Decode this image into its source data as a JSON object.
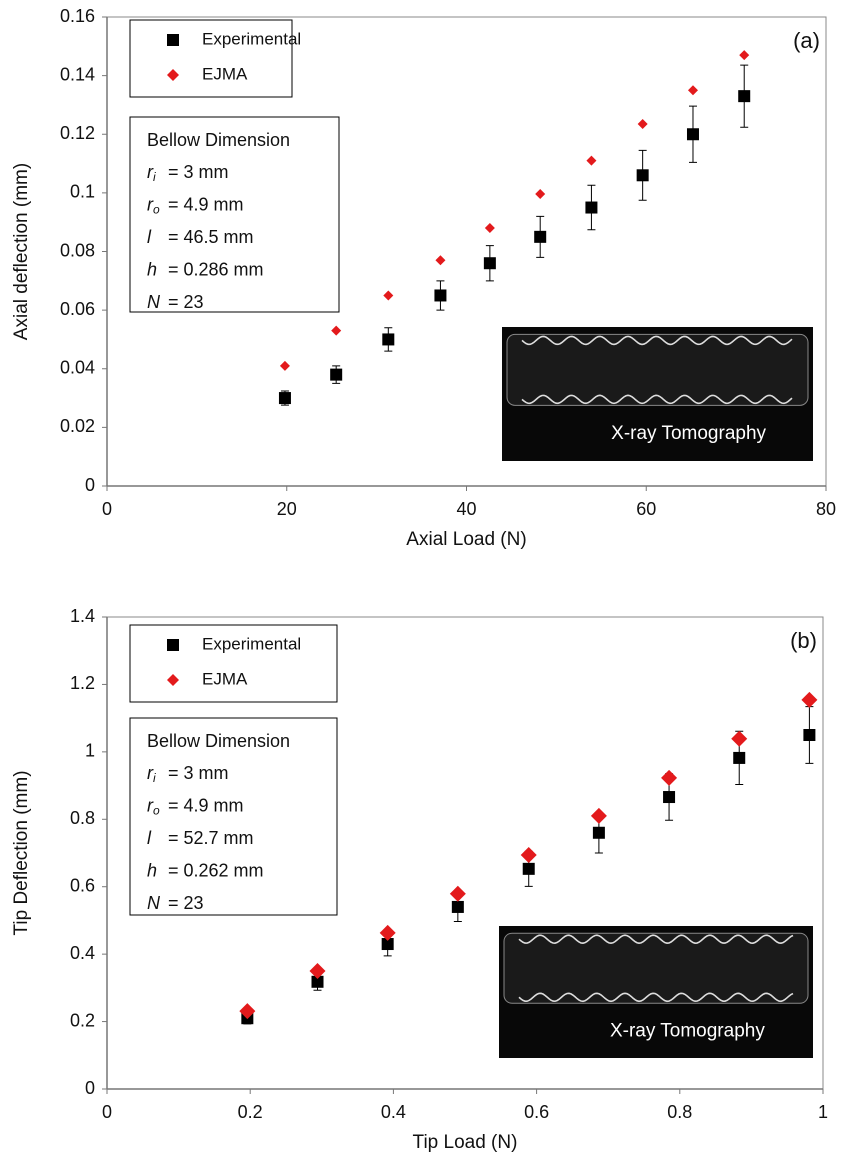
{
  "chart_data": [
    {
      "type": "scatter",
      "annotation": "(a)",
      "xlabel": "Axial Load (N)",
      "ylabel": "Axial deflection (mm)",
      "xlim": [
        0,
        80
      ],
      "ylim": [
        0,
        0.16
      ],
      "xticks": [
        0,
        20,
        40,
        60,
        80
      ],
      "yticks": [
        0,
        0.02,
        0.04,
        0.06,
        0.08,
        0.1,
        0.12,
        0.14,
        0.16
      ],
      "x": [
        19.8,
        25.5,
        31.3,
        37.1,
        42.6,
        48.2,
        53.9,
        59.6,
        65.2,
        70.9
      ],
      "series": [
        {
          "name": "Experimental",
          "color": "#000000",
          "marker": "square",
          "values": [
            0.03,
            0.038,
            0.05,
            0.065,
            0.076,
            0.085,
            0.095,
            0.106,
            0.12,
            0.133
          ],
          "errors": [
            0.0024,
            0.003,
            0.004,
            0.005,
            0.006,
            0.007,
            0.0076,
            0.0085,
            0.0096,
            0.0106
          ]
        },
        {
          "name": "EJMA",
          "color": "#e31a1c",
          "marker": "diamond",
          "values": [
            0.041,
            0.053,
            0.065,
            0.077,
            0.088,
            0.0996,
            0.111,
            0.1235,
            0.135,
            0.147
          ]
        }
      ],
      "legend": "upper left",
      "dimension_box": {
        "title": "Bellow Dimension",
        "rows": [
          {
            "symbol": "r",
            "subscript": "i",
            "text": "= 3 mm"
          },
          {
            "symbol": "r",
            "subscript": "o",
            "text": "= 4.9 mm"
          },
          {
            "symbol": "l",
            "text": "= 46.5 mm"
          },
          {
            "symbol": "h",
            "text": "= 0.286 mm"
          },
          {
            "symbol": "N",
            "text": "= 23"
          }
        ]
      },
      "image_caption": "X-ray Tomography"
    },
    {
      "type": "scatter",
      "annotation": "(b)",
      "xlabel": "Tip Load (N)",
      "ylabel": "Tip Deflection (mm)",
      "xlim": [
        0,
        1
      ],
      "ylim": [
        0,
        1.4
      ],
      "xticks": [
        0,
        0.2,
        0.4,
        0.6,
        0.8,
        1
      ],
      "yticks": [
        0,
        0.2,
        0.4,
        0.6,
        0.8,
        1,
        1.2,
        1.4
      ],
      "x": [
        0.196,
        0.294,
        0.392,
        0.49,
        0.589,
        0.687,
        0.785,
        0.883,
        0.981
      ],
      "series": [
        {
          "name": "Experimental",
          "color": "#000000",
          "marker": "square",
          "values": [
            0.21,
            0.318,
            0.43,
            0.54,
            0.653,
            0.76,
            0.866,
            0.982,
            1.05
          ],
          "errors": [
            0.017,
            0.025,
            0.035,
            0.043,
            0.052,
            0.06,
            0.069,
            0.079,
            0.084
          ]
        },
        {
          "name": "EJMA",
          "color": "#e31a1c",
          "marker": "diamond",
          "values": [
            0.231,
            0.35,
            0.463,
            0.579,
            0.694,
            0.81,
            0.923,
            1.039,
            1.154
          ]
        }
      ],
      "legend": "upper left",
      "dimension_box": {
        "title": "Bellow Dimension",
        "rows": [
          {
            "symbol": "r",
            "subscript": "i",
            "text": "= 3 mm"
          },
          {
            "symbol": "r",
            "subscript": "o",
            "text": "= 4.9 mm"
          },
          {
            "symbol": "l",
            "text": "= 52.7 mm"
          },
          {
            "symbol": "h",
            "text": "= 0.262 mm"
          },
          {
            "symbol": "N",
            "text": "= 23"
          }
        ]
      },
      "image_caption": "X-ray Tomography"
    }
  ]
}
